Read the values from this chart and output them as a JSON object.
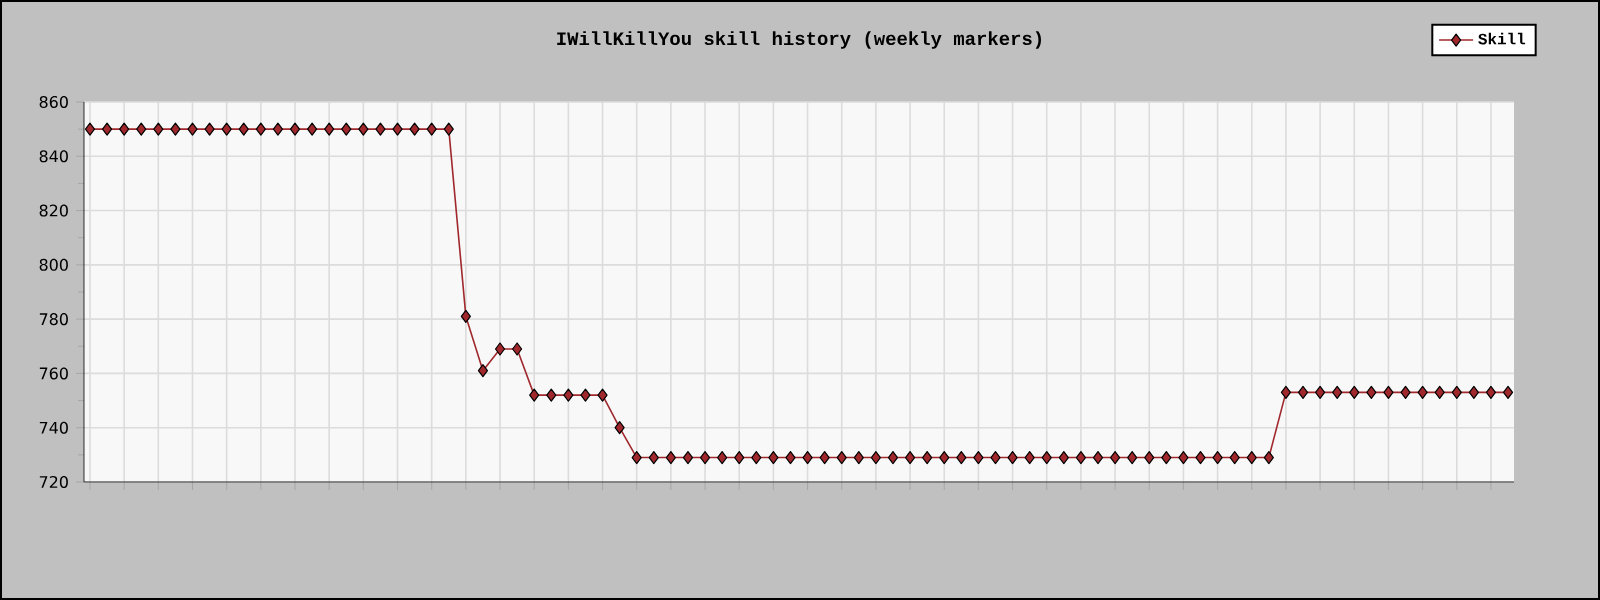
{
  "chart_data": {
    "type": "line",
    "title": "IWillKillYou skill history (weekly markers)",
    "categories": [
      null,
      null,
      null,
      null,
      null,
      null,
      null,
      null,
      null,
      null,
      null,
      null,
      null,
      null,
      null,
      null,
      null,
      null,
      null,
      null,
      null,
      null,
      null,
      null,
      null,
      null,
      null,
      null,
      null,
      null,
      null,
      null,
      null,
      null,
      null,
      null,
      null,
      null,
      null,
      null,
      null,
      null,
      null,
      null,
      null,
      null,
      null,
      null,
      null,
      null,
      null,
      null,
      null,
      null,
      null,
      null,
      null,
      null,
      null,
      null,
      null,
      null,
      null,
      null,
      null,
      null,
      null,
      null,
      null,
      null,
      null,
      null,
      null,
      null,
      null,
      null,
      null,
      null,
      null,
      null,
      null,
      null,
      null,
      null
    ],
    "series": [
      {
        "name": "Skill",
        "color": "#a0282d",
        "values": [
          850,
          850,
          850,
          850,
          850,
          850,
          850,
          850,
          850,
          850,
          850,
          850,
          850,
          850,
          850,
          850,
          850,
          850,
          850,
          850,
          850,
          850,
          781,
          761,
          769,
          769,
          752,
          752,
          752,
          752,
          752,
          740,
          729,
          729,
          729,
          729,
          729,
          729,
          729,
          729,
          729,
          729,
          729,
          729,
          729,
          729,
          729,
          729,
          729,
          729,
          729,
          729,
          729,
          729,
          729,
          729,
          729,
          729,
          729,
          729,
          729,
          729,
          729,
          729,
          729,
          729,
          729,
          729,
          729,
          729,
          753,
          753,
          753,
          753,
          753,
          753,
          753,
          753,
          753,
          753,
          753,
          753,
          753,
          753
        ]
      }
    ],
    "ylim": [
      720,
      860
    ],
    "yticks": [
      720,
      740,
      760,
      780,
      800,
      820,
      840,
      860
    ],
    "grid": true,
    "legend": "top right",
    "marker": "diamond",
    "line_style": "solid",
    "tick_labels": "y"
  }
}
